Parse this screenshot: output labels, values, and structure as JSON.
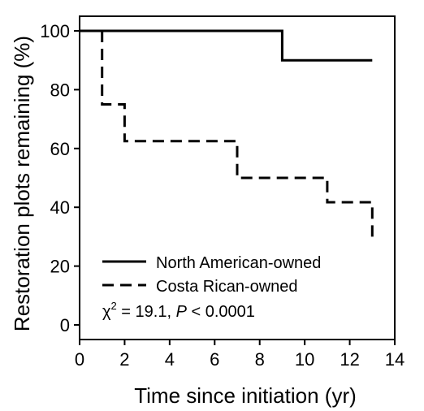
{
  "chart_data": {
    "type": "line",
    "xlabel": "Time since initiation (yr)",
    "ylabel": "Restoration plots remaining (%)",
    "xlim": [
      0,
      14
    ],
    "ylim": [
      0,
      100
    ],
    "xticks": [
      0,
      2,
      4,
      6,
      8,
      10,
      12,
      14
    ],
    "yticks": [
      0,
      20,
      40,
      60,
      80,
      100
    ],
    "grid": false,
    "legend_position": "bottom-left",
    "series": [
      {
        "name": "North American-owned",
        "style": "solid",
        "color": "#000000",
        "points": [
          [
            0,
            100
          ],
          [
            9,
            100
          ],
          [
            9,
            90
          ],
          [
            13,
            90
          ]
        ]
      },
      {
        "name": "Costa Rican-owned",
        "style": "dashed",
        "color": "#000000",
        "points": [
          [
            1,
            100
          ],
          [
            1,
            75
          ],
          [
            2,
            75
          ],
          [
            2,
            62.5
          ],
          [
            7,
            62.5
          ],
          [
            7,
            50
          ],
          [
            11,
            50
          ],
          [
            11,
            41.7
          ],
          [
            13,
            41.7
          ],
          [
            13,
            27.8
          ]
        ]
      }
    ],
    "annotation": {
      "chi_symbol": "χ",
      "chi_superscript": "2",
      "chi_value": " = 19.1, ",
      "p_symbol": "P",
      "p_value": " < 0.0001"
    }
  }
}
